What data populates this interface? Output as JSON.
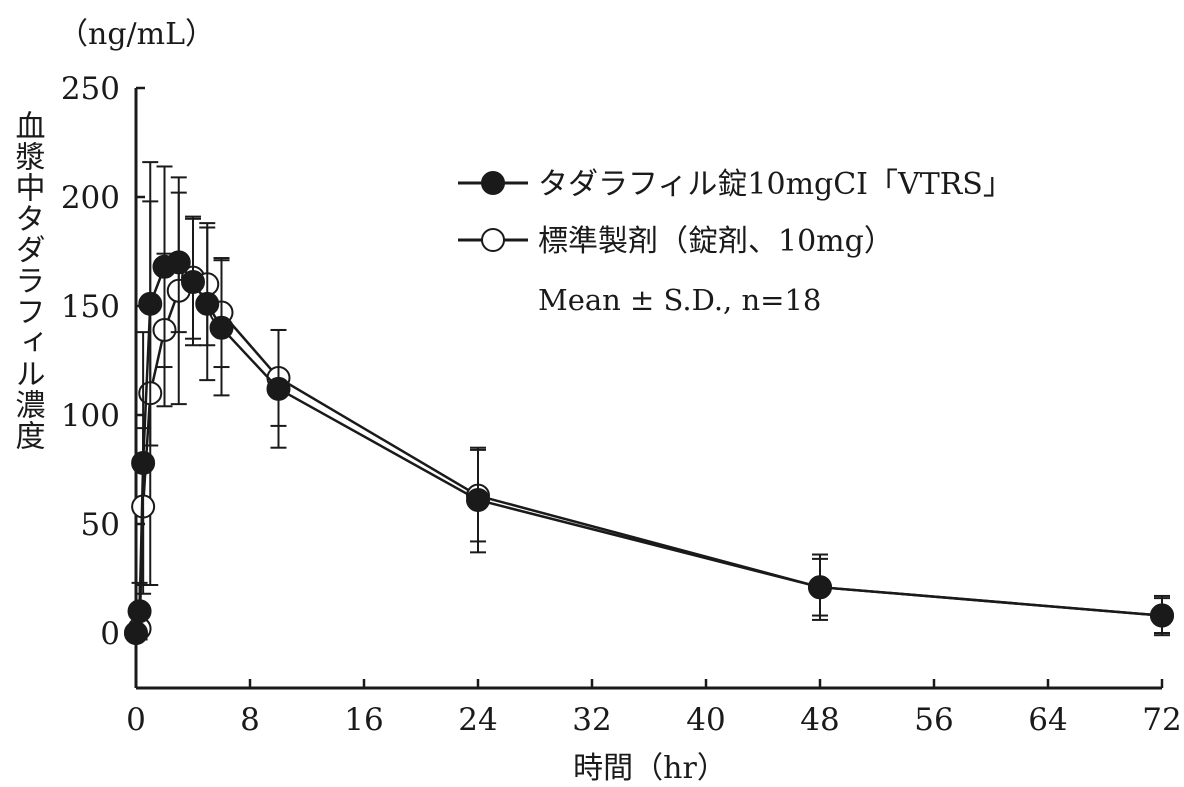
{
  "chart_data": {
    "type": "line",
    "unit_label": "（ng/mL）",
    "ylabel": "血漿中タダラフィル濃度",
    "xlabel": "時間（hr）",
    "xlim": [
      0,
      72
    ],
    "ylim": [
      0,
      250
    ],
    "x_ticks": [
      "0",
      "8",
      "16",
      "24",
      "32",
      "40",
      "48",
      "56",
      "64",
      "72"
    ],
    "y_ticks": [
      "0",
      "50",
      "100",
      "150",
      "200",
      "250"
    ],
    "grid": false,
    "legend_position": "top-right",
    "annotation": "Mean ± S.D., n=18",
    "series": [
      {
        "name": "タダラフィル錠10mgCI「VTRS」",
        "marker": "filled-circle",
        "color": "#1a1a1a",
        "points": [
          {
            "x": 0,
            "y": 0,
            "sd": 0
          },
          {
            "x": 0.25,
            "y": 10,
            "sd": 13
          },
          {
            "x": 0.5,
            "y": 78,
            "sd": 60
          },
          {
            "x": 1,
            "y": 151,
            "sd": 65
          },
          {
            "x": 2,
            "y": 168,
            "sd": 46
          },
          {
            "x": 3,
            "y": 170,
            "sd": 32
          },
          {
            "x": 4,
            "y": 161,
            "sd": 29
          },
          {
            "x": 5,
            "y": 151,
            "sd": 35
          },
          {
            "x": 6,
            "y": 140,
            "sd": 31
          },
          {
            "x": 10,
            "y": 112,
            "sd": 27
          },
          {
            "x": 24,
            "y": 61,
            "sd": 24
          },
          {
            "x": 48,
            "y": 21,
            "sd": 15
          },
          {
            "x": 72,
            "y": 8,
            "sd": 9
          }
        ]
      },
      {
        "name": "標準製剤（錠剤、10mg）",
        "marker": "open-circle",
        "color": "#1a1a1a",
        "points": [
          {
            "x": 0,
            "y": 0,
            "sd": 0
          },
          {
            "x": 0.25,
            "y": 2,
            "sd": 4
          },
          {
            "x": 0.5,
            "y": 58,
            "sd": 36
          },
          {
            "x": 1,
            "y": 110,
            "sd": 88
          },
          {
            "x": 2,
            "y": 139,
            "sd": 35
          },
          {
            "x": 3,
            "y": 157,
            "sd": 52
          },
          {
            "x": 4,
            "y": 163,
            "sd": 28
          },
          {
            "x": 5,
            "y": 160,
            "sd": 28
          },
          {
            "x": 6,
            "y": 147,
            "sd": 25
          },
          {
            "x": 10,
            "y": 117,
            "sd": 22
          },
          {
            "x": 24,
            "y": 63,
            "sd": 21
          },
          {
            "x": 48,
            "y": 21,
            "sd": 13
          },
          {
            "x": 72,
            "y": 8,
            "sd": 8
          }
        ]
      }
    ]
  }
}
